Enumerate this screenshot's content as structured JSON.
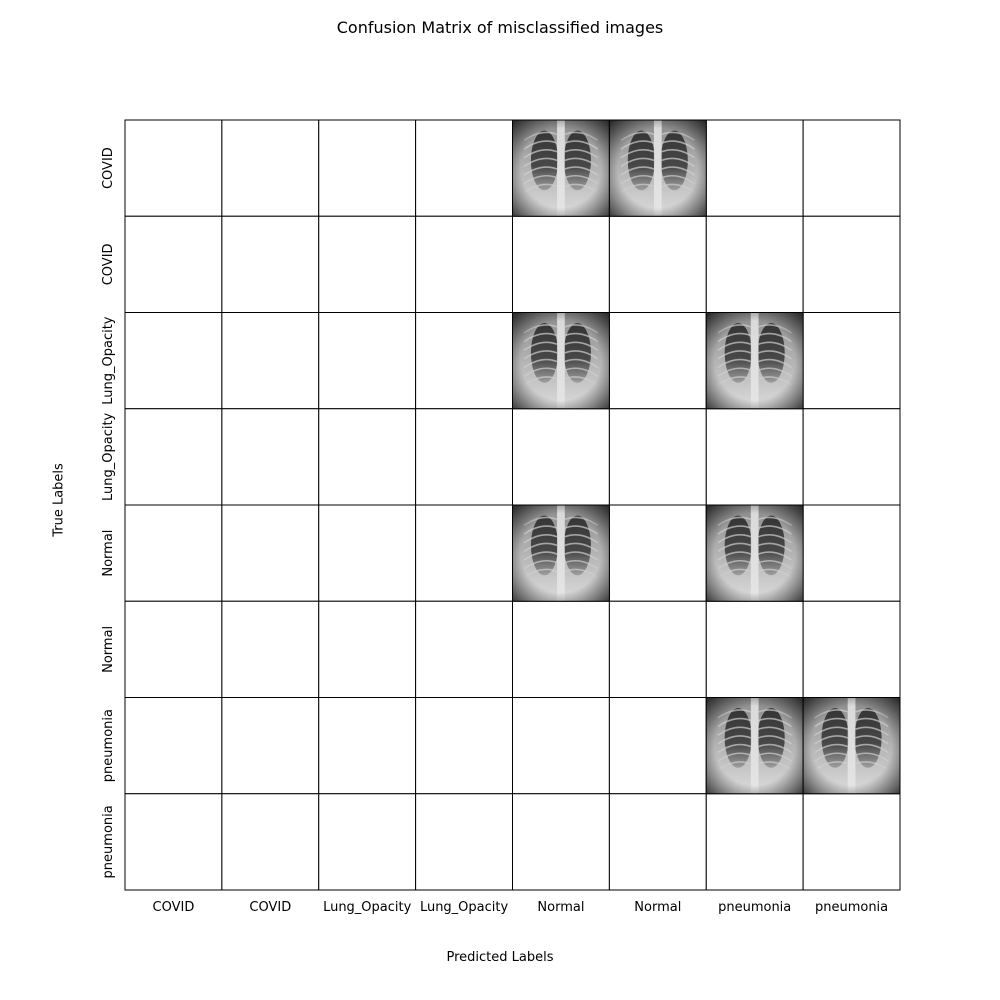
{
  "chart_data": {
    "type": "table",
    "title": "Confusion Matrix of misclassified images",
    "xlabel": "Predicted Labels",
    "ylabel": "True Labels",
    "col_labels": [
      "COVID",
      "COVID",
      "Lung_Opacity",
      "Lung_Opacity",
      "Normal",
      "Normal",
      "pneumonia",
      "pneumonia"
    ],
    "row_labels": [
      "COVID",
      "COVID",
      "Lung_Opacity",
      "Lung_Opacity",
      "Normal",
      "Normal",
      "pneumonia",
      "pneumonia"
    ],
    "image_cells": [
      {
        "row": 0,
        "col": 4,
        "content": "chest-xray-image"
      },
      {
        "row": 0,
        "col": 5,
        "content": "chest-xray-image"
      },
      {
        "row": 2,
        "col": 4,
        "content": "chest-xray-image"
      },
      {
        "row": 2,
        "col": 6,
        "content": "chest-xray-image"
      },
      {
        "row": 4,
        "col": 4,
        "content": "chest-xray-image"
      },
      {
        "row": 4,
        "col": 6,
        "content": "chest-xray-image"
      },
      {
        "row": 6,
        "col": 6,
        "content": "chest-xray-image"
      },
      {
        "row": 6,
        "col": 7,
        "content": "chest-xray-image"
      }
    ],
    "grid": true,
    "colors": {
      "cell_border": "#000000",
      "background": "#ffffff"
    }
  }
}
